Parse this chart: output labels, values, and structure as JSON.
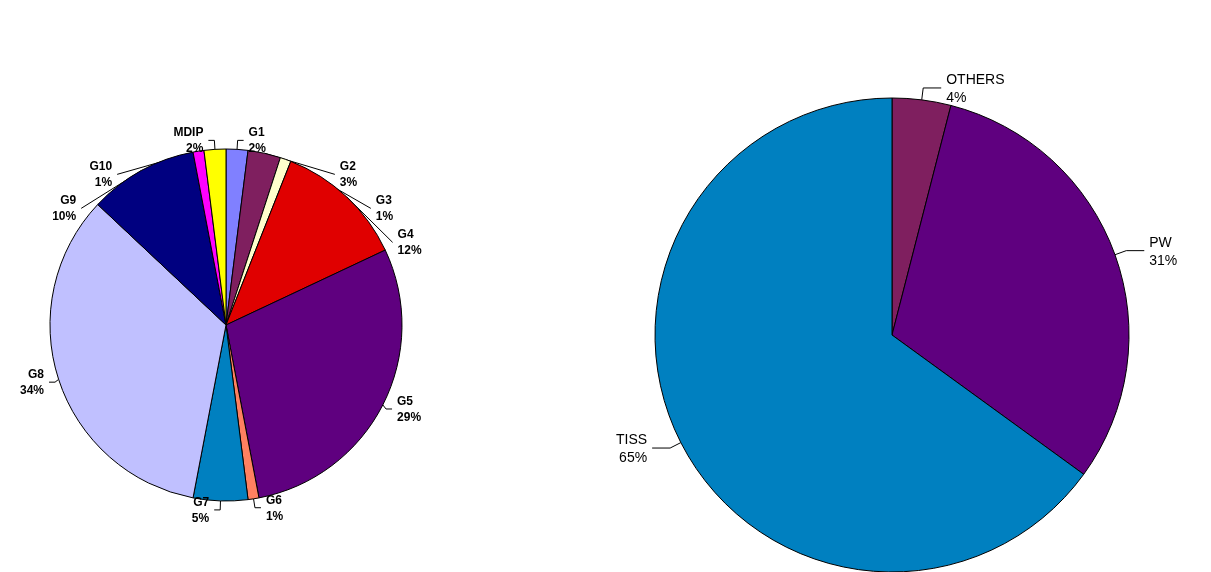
{
  "chart_data": [
    {
      "type": "pie",
      "categories": [
        "G1",
        "G2",
        "G3",
        "G4",
        "G5",
        "G6",
        "G7",
        "G8",
        "G9",
        "G10",
        "MDIP"
      ],
      "values": [
        2,
        3,
        1,
        12,
        29,
        1,
        5,
        34,
        10,
        1,
        2
      ],
      "value_labels": [
        "2%",
        "3%",
        "1%",
        "12%",
        "29%",
        "1%",
        "5%",
        "34%",
        "10%",
        "1%",
        "2%"
      ],
      "colors": [
        "#8080ff",
        "#7f1f5f",
        "#ffffcc",
        "#e00000",
        "#5f007f",
        "#ff8060",
        "#0080c0",
        "#c0c0ff",
        "#000080",
        "#ff00ff",
        "#ffff00"
      ],
      "legend": false
    },
    {
      "type": "pie",
      "categories": [
        "OTHERS",
        "PW",
        "TISS"
      ],
      "values": [
        4,
        31,
        65
      ],
      "value_labels": [
        "4%",
        "31%",
        "65%"
      ],
      "colors": [
        "#7f1f5f",
        "#5f007f",
        "#0080c0"
      ],
      "legend": false
    }
  ]
}
